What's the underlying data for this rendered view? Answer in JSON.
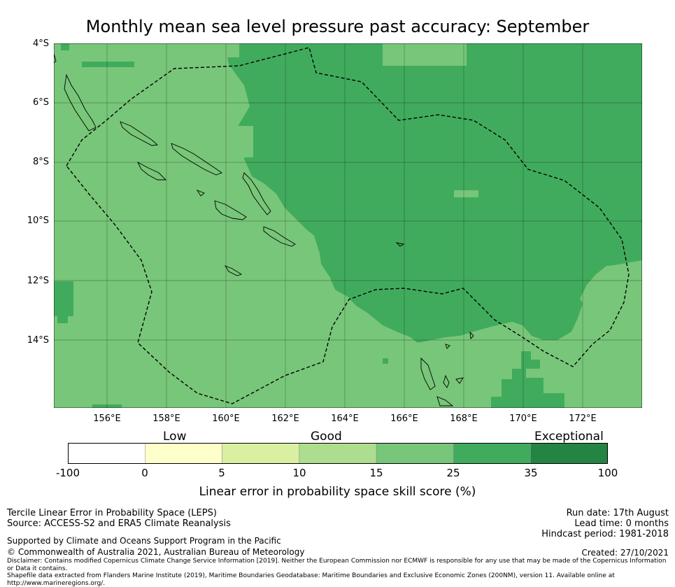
{
  "title": "Monthly mean sea level pressure past accuracy: September",
  "map": {
    "lat_labels": [
      "4°S",
      "6°S",
      "8°S",
      "10°S",
      "12°S",
      "14°S"
    ],
    "lon_labels": [
      "156°E",
      "158°E",
      "160°E",
      "162°E",
      "164°E",
      "166°E",
      "168°E",
      "170°E",
      "172°E"
    ],
    "extent": {
      "lon": [
        154.2,
        174.0
      ],
      "lat": [
        -4.0,
        -16.3
      ]
    },
    "gridlines": true,
    "eez_boundary": "dashed"
  },
  "colorbar": {
    "categories": [
      "Low",
      "Good",
      "Exceptional"
    ],
    "ticks": [
      "-100",
      "0",
      "5",
      "10",
      "15",
      "25",
      "35",
      "100"
    ],
    "colors": [
      "#ffffff",
      "#ffffcc",
      "#d9f0a3",
      "#addd8e",
      "#78c679",
      "#41ab5d",
      "#238443"
    ],
    "label": "Linear error in probability space skill score (%)"
  },
  "footer": {
    "left1": "Tercile Linear Error in Probability Space (LEPS)",
    "left2": "Source: ACCESS-S2 and ERA5 Climate Reanalysis",
    "right1": "Run date: 17th August",
    "right2": "Lead time: 0 months",
    "right3": "Hindcast period: 1981-2018",
    "support": "Supported by Climate and Oceans Support Program in the Pacific",
    "copyright": "© Commonwealth of Australia 2021, Australian Bureau of Meteorology",
    "created": "Created: 27/10/2021",
    "disclaimer1": "Disclaimer: Contains modified Copernicus Climate Change Service Information [2019]. Neither the European Commission nor ECMWF is responsible for any use that may be made of the Copernicus Information or Data it contains.",
    "disclaimer2": "Shapefile data extracted from Flanders Marine Institute (2019), Maritime Boundaries Geodatabase: Maritime Boundaries and Exclusive Economic Zones (200NM), version 11. Available online at http://www.marineregions.org/."
  }
}
